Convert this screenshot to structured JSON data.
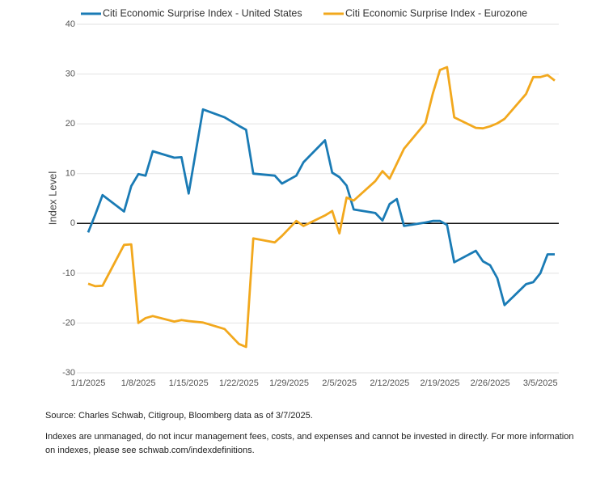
{
  "chart_data": {
    "type": "line",
    "y_label": "Index Level",
    "x": [
      "2025-01-01",
      "2025-01-02",
      "2025-01-03",
      "2025-01-06",
      "2025-01-07",
      "2025-01-08",
      "2025-01-09",
      "2025-01-10",
      "2025-01-13",
      "2025-01-14",
      "2025-01-15",
      "2025-01-17",
      "2025-01-20",
      "2025-01-22",
      "2025-01-23",
      "2025-01-24",
      "2025-01-27",
      "2025-01-28",
      "2025-01-30",
      "2025-01-31",
      "2025-02-03",
      "2025-02-04",
      "2025-02-05",
      "2025-02-06",
      "2025-02-07",
      "2025-02-10",
      "2025-02-11",
      "2025-02-12",
      "2025-02-13",
      "2025-02-14",
      "2025-02-17",
      "2025-02-18",
      "2025-02-19",
      "2025-02-20",
      "2025-02-21",
      "2025-02-24",
      "2025-02-25",
      "2025-02-26",
      "2025-02-27",
      "2025-02-28",
      "2025-03-03",
      "2025-03-04",
      "2025-03-05",
      "2025-03-06",
      "2025-03-07"
    ],
    "series": [
      {
        "name": "Citi Economic Surprise Index - United States",
        "color": "#1a7bb5",
        "values": [
          -1.8,
          1.8,
          5.7,
          2.4,
          7.5,
          9.9,
          9.6,
          14.5,
          13.2,
          13.3,
          6,
          22.9,
          21.3,
          19.6,
          18.8,
          10,
          9.6,
          8,
          9.6,
          12.3,
          16.7,
          10.2,
          9.3,
          7.6,
          2.8,
          2.1,
          0.6,
          3.9,
          4.9,
          -0.5,
          0.2,
          0.5,
          0.5,
          -0.3,
          -7.8,
          -5.5,
          -7.6,
          -8.4,
          -11,
          -16.4,
          -12.2,
          -11.8,
          -10,
          -6.2,
          -6.2
        ]
      },
      {
        "name": "Citi Economic Surprise Index - Eurozone",
        "color": "#f2a81d",
        "values": [
          -12.1,
          -12.6,
          -12.5,
          -4.3,
          -4.2,
          -20,
          -19,
          -18.6,
          -19.7,
          -19.4,
          -19.6,
          -19.9,
          -21.2,
          -24.2,
          -24.8,
          -3,
          -3.8,
          -2.5,
          0.5,
          -0.5,
          1.6,
          2.5,
          -2,
          5.2,
          4.6,
          8.5,
          10.5,
          9,
          12,
          15,
          20.2,
          26,
          30.8,
          31.4,
          21.3,
          19.2,
          19.1,
          19.5,
          20.1,
          21,
          26,
          29.4,
          29.4,
          29.8,
          28.7
        ]
      }
    ],
    "xlim": [
      "2025-01-01",
      "2025-03-07"
    ],
    "xticks": [
      {
        "value": "2025-01-01",
        "label": "1/1/2025"
      },
      {
        "value": "2025-01-08",
        "label": "1/8/2025"
      },
      {
        "value": "2025-01-15",
        "label": "1/15/2025"
      },
      {
        "value": "2025-01-22",
        "label": "1/22/2025"
      },
      {
        "value": "2025-01-29",
        "label": "1/29/2025"
      },
      {
        "value": "2025-02-05",
        "label": "2/5/2025"
      },
      {
        "value": "2025-02-12",
        "label": "2/12/2025"
      },
      {
        "value": "2025-02-19",
        "label": "2/19/2025"
      },
      {
        "value": "2025-02-26",
        "label": "2/26/2025"
      },
      {
        "value": "2025-03-05",
        "label": "3/5/2025"
      }
    ],
    "ylim": [
      -30,
      40
    ],
    "yticks": [
      -30,
      -20,
      -10,
      0,
      10,
      20,
      30,
      40
    ],
    "grid": true,
    "source": "Source: Charles Schwab, Citigroup, Bloomberg data as of 3/7/2025.",
    "note": "Indexes are unmanaged, do not incur management fees, costs, and expenses and cannot be invested in directly. For more information on indexes, please see schwab.com/indexdefinitions."
  }
}
